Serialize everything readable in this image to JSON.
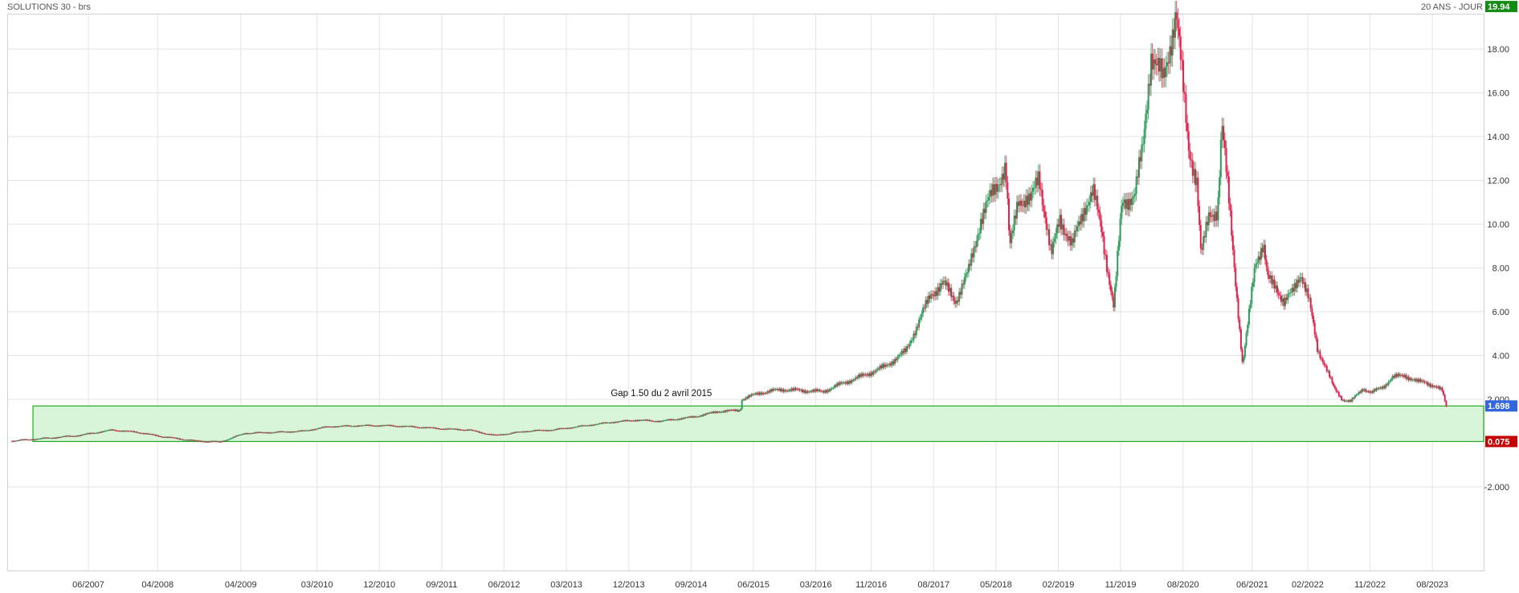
{
  "header": {
    "title": "SOLUTIONS 30 - brs",
    "period": "20 ANS - JOUR"
  },
  "colors": {
    "up": "#2e9b5a",
    "down": "#e0224a",
    "grid": "#e3e3e3",
    "zone_fill": "#d9f5d9",
    "zone_stroke": "#22aa22",
    "high_badge": "#138c13",
    "upper_badge": "#3366dd",
    "lower_badge": "#c40000"
  },
  "chart_data": {
    "type": "line",
    "title": "SOLUTIONS 30 - brs",
    "subtitle": "20 ANS - JOUR",
    "xlabel": "",
    "ylabel": "",
    "x_ticks": [
      "06/2007",
      "04/2008",
      "04/2009",
      "03/2010",
      "12/2010",
      "09/2011",
      "06/2012",
      "03/2013",
      "12/2013",
      "09/2014",
      "06/2015",
      "03/2016",
      "11/2016",
      "08/2017",
      "05/2018",
      "02/2019",
      "11/2019",
      "08/2020",
      "06/2021",
      "02/2022",
      "11/2022",
      "08/2023"
    ],
    "y_ticks": [
      "-2.000",
      "2.000",
      "4.00",
      "6.00",
      "8.00",
      "10.00",
      "12.00",
      "14.00",
      "16.00",
      "18.00"
    ],
    "ylim": [
      -3.0,
      21.5
    ],
    "grid": true,
    "series": [
      {
        "x": [
          2006.5,
          2007.0,
          2007.3,
          2007.7,
          2008.0,
          2008.3,
          2008.7,
          2009.0,
          2009.3,
          2009.7,
          2010.0,
          2010.3,
          2010.7,
          2011.0,
          2011.3,
          2011.7,
          2012.0,
          2012.3,
          2012.7,
          2013.0,
          2013.3,
          2013.7,
          2014.0,
          2014.3,
          2014.7,
          2015.0,
          2015.26,
          2015.27,
          2015.5,
          2015.75,
          2016.0,
          2016.25,
          2016.5,
          2016.75,
          2017.0,
          2017.25,
          2017.4,
          2017.55,
          2017.7,
          2017.85,
          2018.0,
          2018.15,
          2018.3,
          2018.45,
          2018.5,
          2018.6,
          2018.75,
          2018.85,
          2019.0,
          2019.1,
          2019.25,
          2019.4,
          2019.5,
          2019.6,
          2019.75,
          2019.85,
          2020.0,
          2020.1,
          2020.2,
          2020.35,
          2020.5,
          2020.6,
          2020.65,
          2020.75,
          2020.8,
          2020.9,
          2021.0,
          2021.05,
          2021.15,
          2021.3,
          2021.35,
          2021.45,
          2021.55,
          2021.6,
          2021.7,
          2021.8,
          2021.9,
          2022.0,
          2022.1,
          2022.2,
          2022.3,
          2022.4,
          2022.5,
          2022.6,
          2022.75,
          2022.85,
          2023.0,
          2023.1,
          2023.25,
          2023.4,
          2023.5,
          2023.6,
          2023.7,
          2023.75
        ],
        "values": [
          0.1,
          0.25,
          0.35,
          0.6,
          0.5,
          0.3,
          0.1,
          0.05,
          0.45,
          0.5,
          0.55,
          0.75,
          0.8,
          0.8,
          0.75,
          0.65,
          0.6,
          0.35,
          0.55,
          0.6,
          0.75,
          0.95,
          1.05,
          1.0,
          1.2,
          1.45,
          1.5,
          2.0,
          2.3,
          2.45,
          2.4,
          2.35,
          2.75,
          3.1,
          3.5,
          4.2,
          5.5,
          6.8,
          7.3,
          6.5,
          7.8,
          10.2,
          11.5,
          12.6,
          8.8,
          11.2,
          11.0,
          12.3,
          8.5,
          10.3,
          9.0,
          10.8,
          11.5,
          9.8,
          6.2,
          11.0,
          11.3,
          13.5,
          17.8,
          16.5,
          19.8,
          15.5,
          13.5,
          12.0,
          8.5,
          10.5,
          10.6,
          14.5,
          10.5,
          3.5,
          5.0,
          8.3,
          9.0,
          7.5,
          7.2,
          6.4,
          6.9,
          7.8,
          6.5,
          4.3,
          3.5,
          2.5,
          2.0,
          1.9,
          2.5,
          2.3,
          2.6,
          3.0,
          3.1,
          2.8,
          2.8,
          2.6,
          2.4,
          1.7
        ]
      }
    ],
    "zone": {
      "top": 1.698,
      "bottom": 0.075
    },
    "annotation": "Gap 1.50 du 2 avril 2015",
    "price_labels": {
      "high": "19.94",
      "zone_top": "1.698",
      "zone_bottom": "0.075"
    }
  }
}
